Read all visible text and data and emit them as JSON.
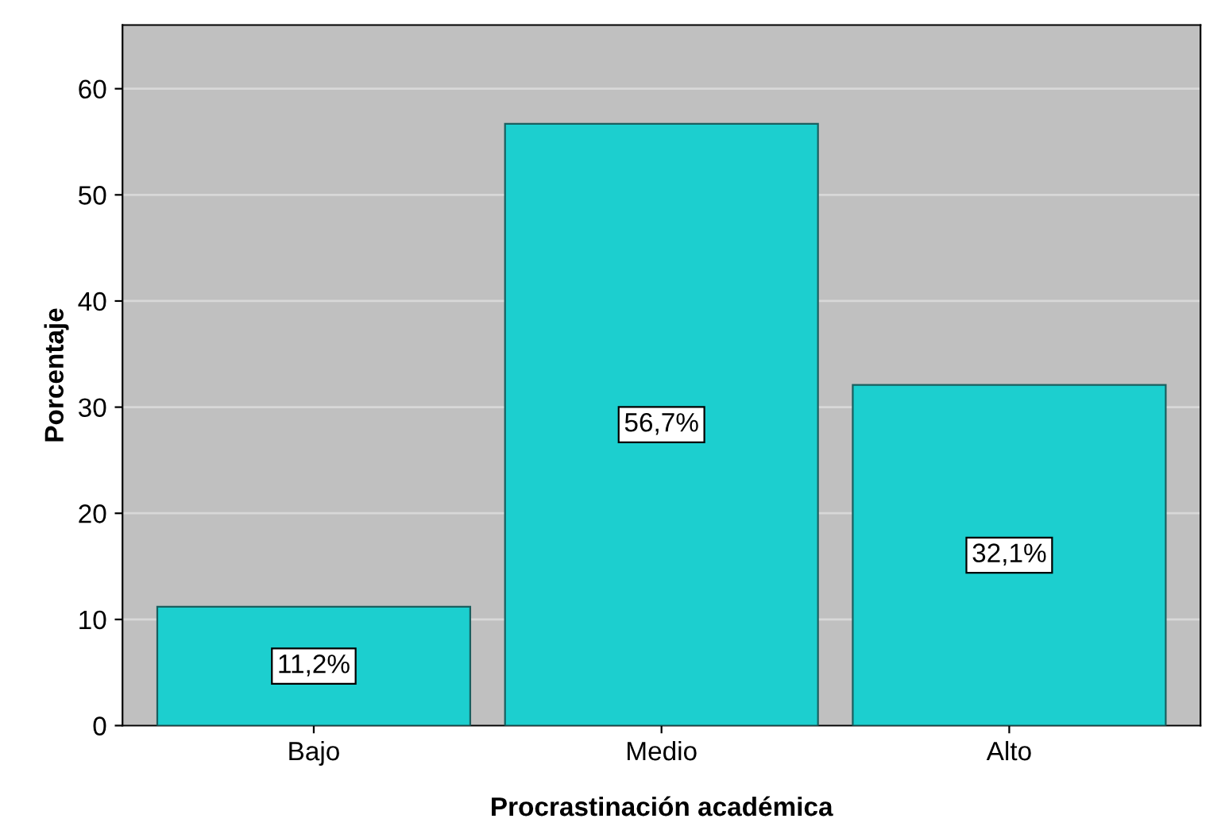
{
  "chart_data": {
    "type": "bar",
    "xlabel": "Procrastinación académica",
    "ylabel": "Porcentaje",
    "categories": [
      "Bajo",
      "Medio",
      "Alto"
    ],
    "values": [
      11.2,
      56.7,
      32.1
    ],
    "value_labels": [
      "11,2%",
      "56,7%",
      "32,1%"
    ],
    "color": "#1ccfcf",
    "ylim": [
      0,
      66
    ],
    "yticks": [
      0,
      10,
      20,
      30,
      40,
      50,
      60
    ],
    "grid": "y"
  }
}
